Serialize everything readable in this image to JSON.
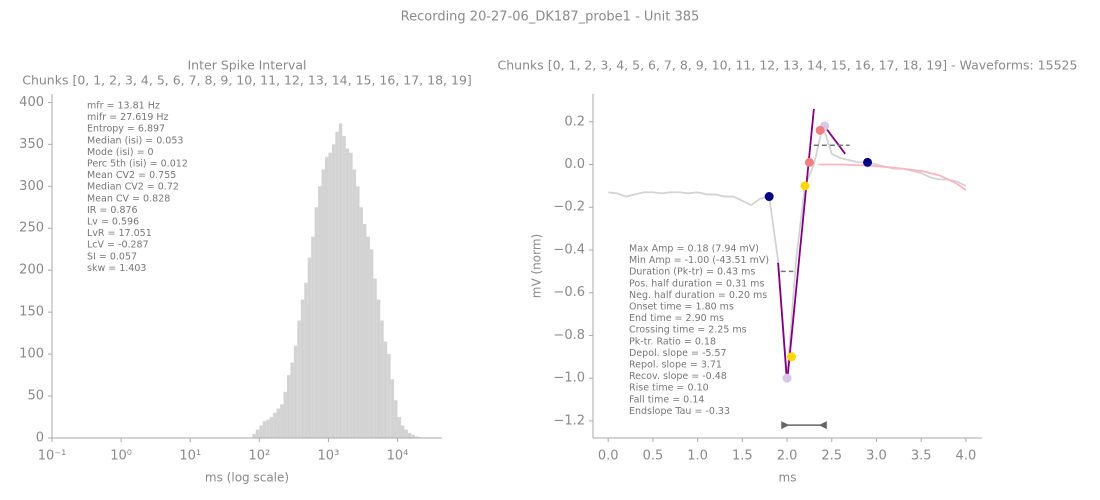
{
  "figure_title": "Recording 20-27-06_DK187_probe1 - Unit 385",
  "chart_data": [
    {
      "type": "histogram",
      "title": "Inter Spike Interval",
      "subtitle": "Chunks [0, 1, 2, 3, 4, 5, 6, 7, 8, 9, 10, 11, 12, 13, 14, 15, 16, 17, 18, 19]",
      "xlabel": "ms (log scale)",
      "log_x": true,
      "color": "#d3d3d3",
      "bins": [
        79.4,
        89.1,
        100,
        112.2,
        125.9,
        141.3,
        158.5,
        177.8,
        199.5,
        223.9,
        251.2,
        281.8,
        316.2,
        354.8,
        398.1,
        446.7,
        501.2,
        562.3,
        631.0,
        707.9,
        794.3,
        891.3,
        1000,
        1122,
        1259,
        1413,
        1585,
        1778,
        1995,
        2239,
        2512,
        2818,
        3162,
        3548,
        3981,
        4467,
        5012,
        5623,
        6310,
        7079,
        7943,
        8913,
        10000,
        11220,
        12589,
        14125,
        15849,
        17783,
        19953,
        22387
      ],
      "counts": [
        5,
        10,
        15,
        20,
        22,
        25,
        30,
        35,
        40,
        55,
        75,
        90,
        110,
        140,
        165,
        185,
        215,
        240,
        275,
        300,
        320,
        335,
        340,
        350,
        365,
        375,
        360,
        345,
        340,
        320,
        300,
        275,
        255,
        240,
        225,
        190,
        165,
        140,
        115,
        100,
        70,
        45,
        25,
        15,
        10,
        6,
        4,
        2,
        1
      ],
      "xlim": [
        0.1,
        44000
      ],
      "xticks": [
        {
          "value": 0.1,
          "label": "10⁻¹"
        },
        {
          "value": 1,
          "label": "10⁰"
        },
        {
          "value": 10,
          "label": "10¹"
        },
        {
          "value": 100,
          "label": "10²"
        },
        {
          "value": 1000,
          "label": "10³"
        },
        {
          "value": 10000,
          "label": "10⁴"
        }
      ],
      "ylim": [
        0,
        410
      ],
      "yticks": [
        0,
        50,
        100,
        150,
        200,
        250,
        300,
        350,
        400
      ],
      "annotations": [
        "mfr = 13.81 Hz",
        "mifr = 27.619 Hz",
        "Entropy = 6.897",
        "Median (isi) = 0.053",
        "Mode (isi) = 0",
        "Perc 5th (isi) = 0.012",
        "Mean CV2 = 0.755",
        "Median CV2 = 0.72",
        "Mean CV = 0.828",
        "IR = 0.876",
        "Lv = 0.596",
        "LvR = 17.051",
        "LcV = -0.287",
        "SI = 0.057",
        "skw = 1.403"
      ]
    },
    {
      "type": "line",
      "title": "Chunks [0, 1, 2, 3, 4, 5, 6, 7, 8, 9, 10, 11, 12, 13, 14, 15, 16, 17, 18, 19] - Waveforms: 15525",
      "xlabel": "ms",
      "ylabel": "mV (norm)",
      "xlim": [
        -0.17,
        4.18
      ],
      "xticks": [
        {
          "value": 0,
          "label": "0.0"
        },
        {
          "value": 0.5,
          "label": "0.5"
        },
        {
          "value": 1,
          "label": "1.0"
        },
        {
          "value": 1.5,
          "label": "1.5"
        },
        {
          "value": 2,
          "label": "2.0"
        },
        {
          "value": 2.5,
          "label": "2.5"
        },
        {
          "value": 3,
          "label": "3.0"
        },
        {
          "value": 3.5,
          "label": "3.5"
        },
        {
          "value": 4,
          "label": "4.0"
        }
      ],
      "ylim": [
        -1.28,
        0.33
      ],
      "yticks": [
        {
          "value": -1.2,
          "label": "−1.2"
        },
        {
          "value": -1,
          "label": "−1.0"
        },
        {
          "value": -0.8,
          "label": "−0.8"
        },
        {
          "value": -0.6,
          "label": "−0.6"
        },
        {
          "value": -0.4,
          "label": "−0.4"
        },
        {
          "value": -0.2,
          "label": "−0.2"
        },
        {
          "value": 0,
          "label": "0.0"
        },
        {
          "value": 0.2,
          "label": "0.2"
        }
      ],
      "series": [
        {
          "style": "line",
          "color": "#d3d3d3",
          "x": [
            0,
            0.1,
            0.2,
            0.3,
            0.4,
            0.5,
            0.6,
            0.7,
            0.8,
            0.9,
            1.0,
            1.1,
            1.2,
            1.3,
            1.4,
            1.5,
            1.6,
            1.7,
            1.8,
            1.9,
            2.0,
            2.1,
            2.2,
            2.3,
            2.4,
            2.5,
            2.6,
            2.7,
            2.8,
            2.9,
            3.0,
            3.1,
            3.2,
            3.3,
            3.4,
            3.5,
            3.6,
            3.7,
            3.8,
            3.9,
            4.0
          ],
          "values": [
            -0.13,
            -0.135,
            -0.15,
            -0.14,
            -0.13,
            -0.13,
            -0.135,
            -0.13,
            -0.13,
            -0.135,
            -0.13,
            -0.14,
            -0.14,
            -0.15,
            -0.15,
            -0.17,
            -0.19,
            -0.16,
            -0.15,
            -0.45,
            -1.0,
            -0.45,
            -0.1,
            0.0,
            0.18,
            0.05,
            0.03,
            0.02,
            0.01,
            0.01,
            0.0,
            -0.01,
            -0.02,
            -0.02,
            -0.03,
            -0.04,
            -0.06,
            -0.07,
            -0.07,
            -0.08,
            -0.1
          ]
        },
        {
          "style": "line",
          "color": "#ffb6c1",
          "x": [
            2.35,
            2.6,
            2.9,
            3.2,
            3.5,
            3.7,
            3.9,
            4.0
          ],
          "values": [
            0.0,
            0.0,
            -0.005,
            -0.015,
            -0.03,
            -0.05,
            -0.09,
            -0.12
          ]
        },
        {
          "style": "line",
          "color": "#800080",
          "x": [
            1.9,
            2.0
          ],
          "values": [
            -0.46,
            -1.02
          ]
        },
        {
          "style": "line",
          "color": "#800080",
          "x": [
            2.0,
            2.3
          ],
          "values": [
            -1.02,
            0.26
          ]
        },
        {
          "style": "line",
          "color": "#800080",
          "x": [
            2.4,
            2.65
          ],
          "values": [
            0.19,
            0.05
          ]
        },
        {
          "style": "dashed",
          "color": "#777777",
          "x": [
            1.93,
            2.07
          ],
          "values": [
            -0.5,
            -0.5
          ]
        },
        {
          "style": "dashed",
          "color": "#777777",
          "x": [
            2.3,
            2.7
          ],
          "values": [
            0.09,
            0.09
          ]
        },
        {
          "style": "scatter",
          "color": "#d8c8e8",
          "x": [
            2.0,
            2.42
          ],
          "values": [
            -1.0,
            0.18
          ]
        },
        {
          "style": "scatter",
          "color": "#000080",
          "x": [
            1.8,
            2.9
          ],
          "values": [
            -0.15,
            0.01
          ]
        },
        {
          "style": "scatter",
          "color": "#ffd700",
          "x": [
            2.2,
            2.05
          ],
          "values": [
            -0.1,
            -0.9
          ]
        },
        {
          "style": "scatter",
          "color": "#f08080",
          "x": [
            2.25,
            2.37
          ],
          "values": [
            0.01,
            0.16
          ]
        },
        {
          "style": "arrow",
          "color": "#666666",
          "x": [
            1.98,
            2.4
          ],
          "values": [
            -1.22,
            -1.22
          ]
        }
      ],
      "annotations": [
        "Max Amp = 0.18 (7.94 mV)",
        "Min Amp = -1.00 (-43.51 mV)",
        "Duration (Pk-tr) = 0.43 ms",
        "Pos. half duration = 0.31 ms",
        "Neg. half duration = 0.20 ms",
        "Onset time = 1.80 ms",
        "End time = 2.90 ms",
        "Crossing time = 2.25 ms",
        "Pk-tr. Ratio = 0.18",
        "Depol. slope = -5.57",
        "Repol. slope = 3.71",
        "Recov. slope = -0.48",
        "Rise time = 0.10",
        "Fall time = 0.14",
        "Endslope Tau = -0.33"
      ]
    }
  ]
}
